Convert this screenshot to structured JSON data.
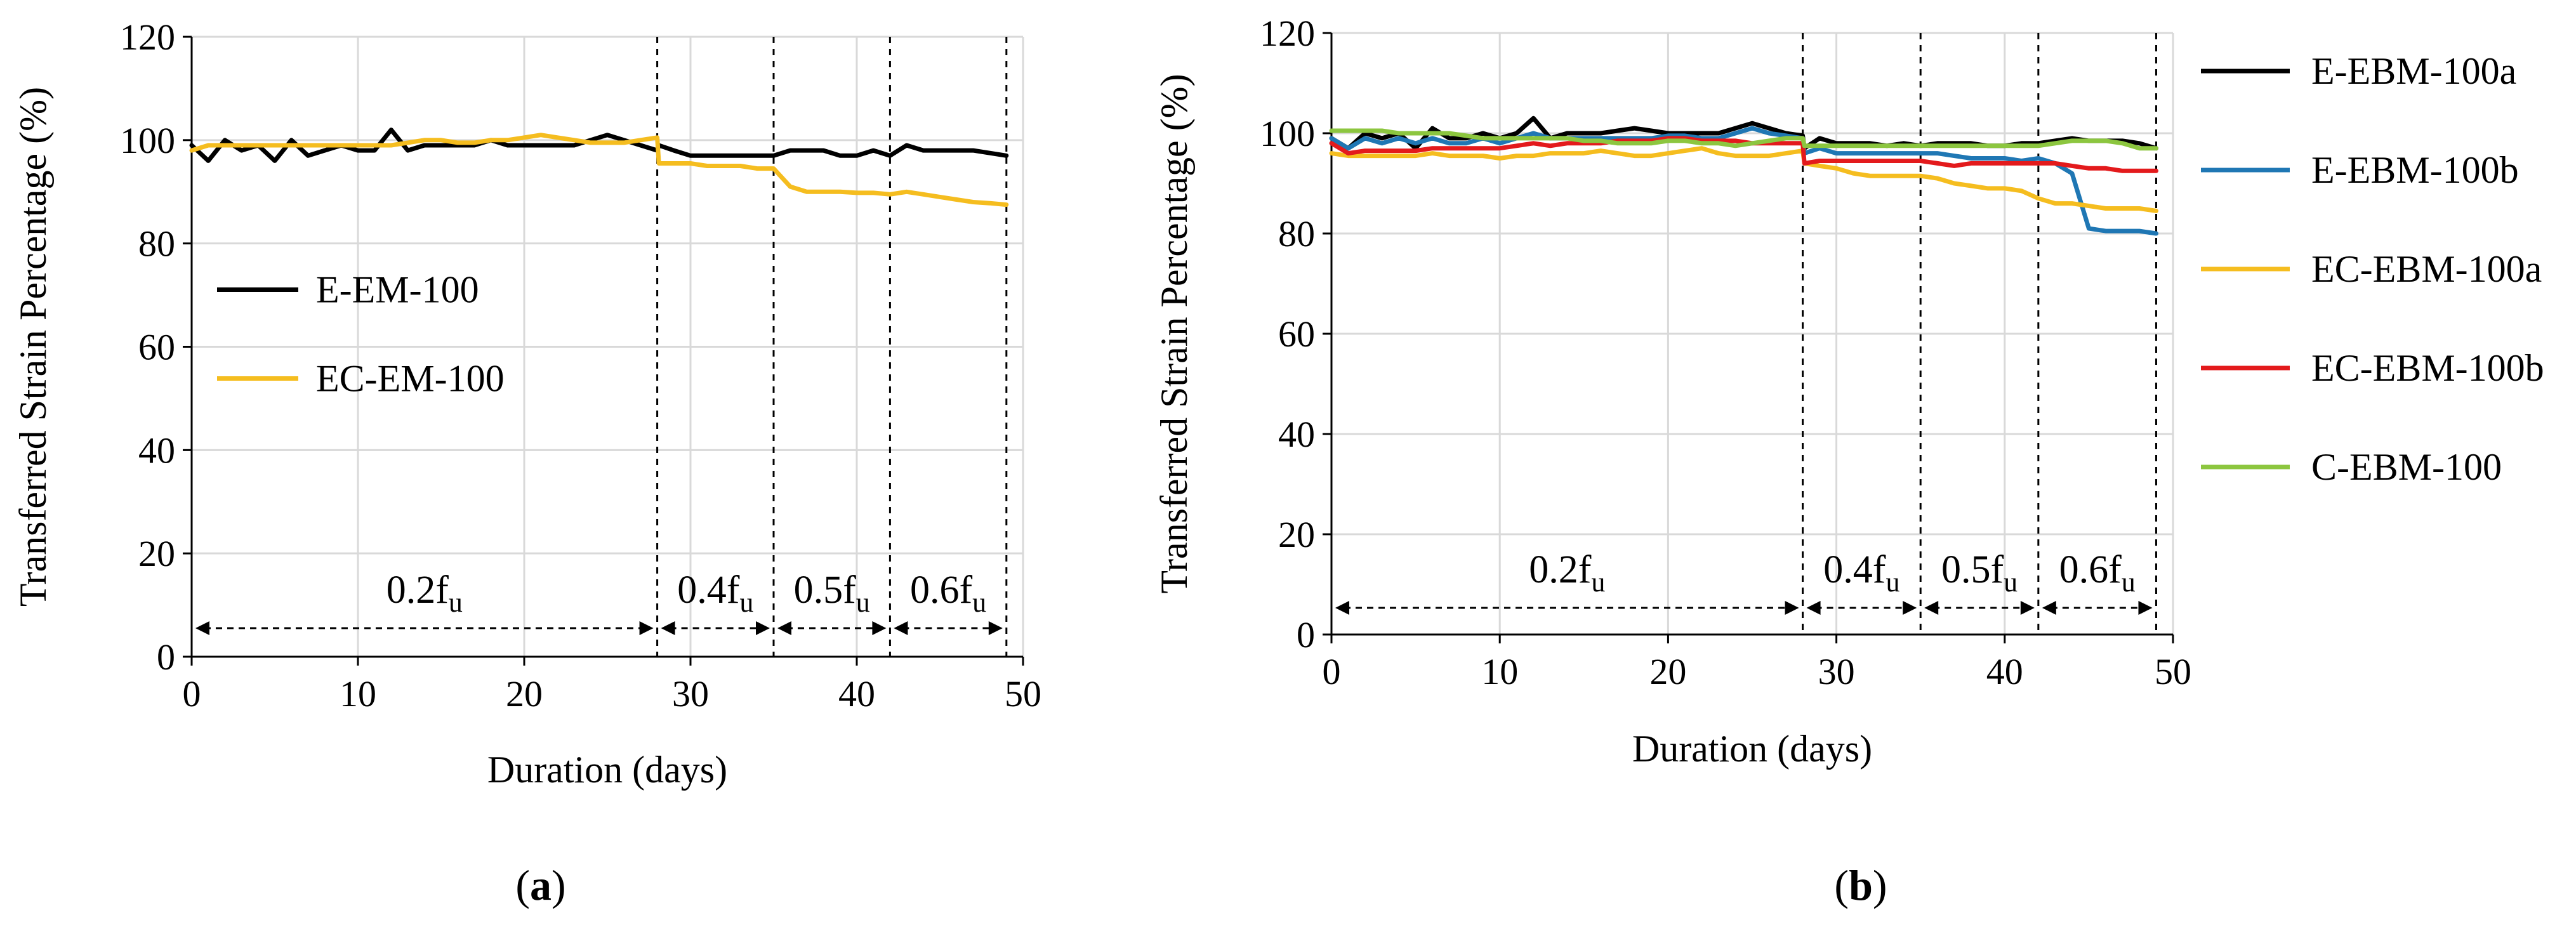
{
  "chart_data": [
    {
      "id": "a",
      "type": "line",
      "caption": "a",
      "xlabel": "Duration (days)",
      "ylabel": "Transferred Strain Percentage (%)",
      "xlim": [
        0,
        50
      ],
      "ylim": [
        0,
        120
      ],
      "xticks": [
        0,
        10,
        20,
        30,
        40,
        50
      ],
      "yticks": [
        0,
        20,
        40,
        60,
        80,
        100,
        120
      ],
      "grid": true,
      "legend_position": "center-left",
      "regions": [
        {
          "label": "0.2f",
          "sub": "u",
          "x_start": 0,
          "x_end": 28
        },
        {
          "label": "0.4f",
          "sub": "u",
          "x_start": 28,
          "x_end": 35
        },
        {
          "label": "0.5f",
          "sub": "u",
          "x_start": 35,
          "x_end": 42
        },
        {
          "label": "0.6f",
          "sub": "u",
          "x_start": 42,
          "x_end": 49
        }
      ],
      "series": [
        {
          "name": "E-EM-100",
          "color": "#000000",
          "x": [
            0,
            1,
            2,
            3,
            4,
            5,
            6,
            7,
            8,
            9,
            10,
            11,
            12,
            13,
            14,
            15,
            16,
            17,
            18,
            19,
            20,
            21,
            22,
            23,
            24,
            25,
            26,
            27,
            28,
            28.1,
            29,
            30,
            31,
            32,
            33,
            34,
            35,
            36,
            37,
            38,
            39,
            40,
            41,
            42,
            43,
            44,
            45,
            46,
            47,
            48,
            49
          ],
          "y": [
            99,
            96,
            100,
            98,
            99,
            96,
            100,
            97,
            98,
            99,
            98,
            98,
            102,
            98,
            99,
            99,
            99,
            99,
            100,
            99,
            99,
            99,
            99,
            99,
            100,
            101,
            100,
            99,
            98,
            99,
            98,
            97,
            97,
            97,
            97,
            97,
            97,
            98,
            98,
            98,
            97,
            97,
            98,
            97,
            99,
            98,
            98,
            98,
            98,
            97.5,
            97
          ]
        },
        {
          "name": "EC-EM-100",
          "color": "#F5BD1F",
          "x": [
            0,
            1,
            2,
            3,
            4,
            5,
            6,
            7,
            8,
            9,
            10,
            11,
            12,
            13,
            14,
            15,
            16,
            17,
            18,
            19,
            20,
            21,
            22,
            23,
            24,
            25,
            26,
            27,
            28,
            28.1,
            29,
            30,
            31,
            32,
            33,
            34,
            35,
            36,
            37,
            38,
            39,
            40,
            41,
            42,
            43,
            44,
            45,
            46,
            47,
            48,
            49
          ],
          "y": [
            98,
            99,
            99,
            99,
            99,
            99,
            99,
            99,
            99,
            99,
            99,
            99,
            99,
            99.5,
            100,
            100,
            99.5,
            99.5,
            100,
            100,
            100.5,
            101,
            100.5,
            100,
            99.5,
            99.5,
            99.5,
            100,
            100.5,
            95.5,
            95.5,
            95.5,
            95,
            95,
            95,
            94.5,
            94.5,
            91,
            90,
            90,
            90,
            89.8,
            89.8,
            89.5,
            90,
            89.5,
            89,
            88.5,
            88,
            87.8,
            87.5
          ]
        }
      ]
    },
    {
      "id": "b",
      "type": "line",
      "caption": "b",
      "xlabel": "Duration (days)",
      "ylabel": "Transferred Strain Percentage (%)",
      "xlim": [
        0,
        50
      ],
      "ylim": [
        0,
        120
      ],
      "xticks": [
        0,
        10,
        20,
        30,
        40,
        50
      ],
      "yticks": [
        0,
        20,
        40,
        60,
        80,
        100,
        120
      ],
      "grid": true,
      "legend_position": "right",
      "regions": [
        {
          "label": "0.2f",
          "sub": "u",
          "x_start": 0,
          "x_end": 28
        },
        {
          "label": "0.4f",
          "sub": "u",
          "x_start": 28,
          "x_end": 35
        },
        {
          "label": "0.5f",
          "sub": "u",
          "x_start": 35,
          "x_end": 42
        },
        {
          "label": "0.6f",
          "sub": "u",
          "x_start": 42,
          "x_end": 49
        }
      ],
      "series": [
        {
          "name": "E-EBM-100a",
          "color": "#000000",
          "x": [
            0,
            1,
            2,
            3,
            4,
            5,
            6,
            7,
            8,
            9,
            10,
            11,
            12,
            13,
            14,
            15,
            16,
            17,
            18,
            19,
            20,
            21,
            22,
            23,
            24,
            25,
            26,
            27,
            28,
            28.1,
            29,
            30,
            31,
            32,
            33,
            34,
            35,
            36,
            37,
            38,
            39,
            40,
            41,
            42,
            43,
            44,
            45,
            46,
            47,
            48,
            49
          ],
          "y": [
            99,
            97,
            100,
            99,
            100,
            97,
            101,
            99,
            99,
            100,
            99,
            100,
            103,
            99,
            100,
            100,
            100,
            100.5,
            101,
            100.5,
            100,
            100,
            100,
            100,
            101,
            102,
            101,
            100,
            99.5,
            97,
            99,
            98,
            98,
            98,
            97.5,
            98,
            97.5,
            98,
            98,
            98,
            97.5,
            97.5,
            98,
            98,
            98.5,
            99,
            98.5,
            98.5,
            98.5,
            98,
            97
          ]
        },
        {
          "name": "E-EBM-100b",
          "color": "#1F77B4",
          "x": [
            0,
            1,
            2,
            3,
            4,
            5,
            6,
            7,
            8,
            9,
            10,
            11,
            12,
            13,
            14,
            15,
            16,
            17,
            18,
            19,
            20,
            21,
            22,
            23,
            24,
            25,
            26,
            27,
            28,
            28.1,
            29,
            30,
            31,
            32,
            33,
            34,
            35,
            36,
            37,
            38,
            39,
            40,
            41,
            42,
            43,
            44,
            45,
            46,
            47,
            48,
            49
          ],
          "y": [
            99,
            97,
            99,
            98,
            99,
            98,
            99,
            98,
            98,
            99,
            98,
            99,
            100,
            99,
            99,
            99,
            99,
            99,
            99,
            99,
            99.5,
            99.5,
            99,
            99,
            100,
            101,
            100,
            99.5,
            99,
            96,
            97,
            96,
            96,
            96,
            96,
            96,
            96,
            96,
            95.5,
            95,
            95,
            95,
            94.5,
            95,
            94,
            92,
            81,
            80.5,
            80.5,
            80.5,
            80
          ]
        },
        {
          "name": "EC-EBM-100a",
          "color": "#F5BD1F",
          "x": [
            0,
            1,
            2,
            3,
            4,
            5,
            6,
            7,
            8,
            9,
            10,
            11,
            12,
            13,
            14,
            15,
            16,
            17,
            18,
            19,
            20,
            21,
            22,
            23,
            24,
            25,
            26,
            27,
            28,
            28.1,
            29,
            30,
            31,
            32,
            33,
            34,
            35,
            36,
            37,
            38,
            39,
            40,
            41,
            42,
            43,
            44,
            45,
            46,
            47,
            48,
            49
          ],
          "y": [
            96,
            95.5,
            95.5,
            95.5,
            95.5,
            95.5,
            96,
            95.5,
            95.5,
            95.5,
            95,
            95.5,
            95.5,
            96,
            96,
            96,
            96.5,
            96,
            95.5,
            95.5,
            96,
            96.5,
            97,
            96,
            95.5,
            95.5,
            95.5,
            96,
            96.5,
            94,
            93.5,
            93,
            92,
            91.5,
            91.5,
            91.5,
            91.5,
            91,
            90,
            89.5,
            89,
            89,
            88.5,
            87,
            86,
            86,
            85.5,
            85,
            85,
            85,
            84.5
          ]
        },
        {
          "name": "EC-EBM-100b",
          "color": "#E31A1C",
          "x": [
            0,
            1,
            2,
            3,
            4,
            5,
            6,
            7,
            8,
            9,
            10,
            11,
            12,
            13,
            14,
            15,
            16,
            17,
            18,
            19,
            20,
            21,
            22,
            23,
            24,
            25,
            26,
            27,
            28,
            28.1,
            29,
            30,
            31,
            32,
            33,
            34,
            35,
            36,
            37,
            38,
            39,
            40,
            41,
            42,
            43,
            44,
            45,
            46,
            47,
            48,
            49
          ],
          "y": [
            98,
            96,
            96.5,
            96.5,
            96.5,
            96.5,
            97,
            97,
            97,
            97,
            97,
            97.5,
            98,
            97.5,
            98,
            98,
            98,
            98.5,
            98.5,
            98.5,
            99,
            99,
            98.5,
            98.5,
            98.5,
            98,
            98,
            98,
            98,
            94,
            94.5,
            94.5,
            94.5,
            94.5,
            94.5,
            94.5,
            94.5,
            94,
            93.5,
            94,
            94,
            94,
            94,
            94,
            94,
            93.5,
            93,
            93,
            92.5,
            92.5,
            92.5
          ]
        },
        {
          "name": "C-EBM-100",
          "color": "#8CC63F",
          "x": [
            0,
            1,
            2,
            3,
            4,
            5,
            6,
            7,
            8,
            9,
            10,
            11,
            12,
            13,
            14,
            15,
            16,
            17,
            18,
            19,
            20,
            21,
            22,
            23,
            24,
            25,
            26,
            27,
            28,
            28.1,
            29,
            30,
            31,
            32,
            33,
            34,
            35,
            36,
            37,
            38,
            39,
            40,
            41,
            42,
            43,
            44,
            45,
            46,
            47,
            48,
            49
          ],
          "y": [
            100.5,
            100.5,
            100.5,
            100.5,
            100,
            100,
            100,
            100,
            99.5,
            99,
            99,
            99,
            99,
            99,
            99,
            98.5,
            98.5,
            98,
            98,
            98,
            98.5,
            98.5,
            98,
            98,
            97.5,
            98,
            98.5,
            99,
            99,
            97.5,
            97.5,
            97.5,
            97.5,
            97.5,
            97.5,
            97.5,
            97.5,
            97.5,
            97.5,
            97.5,
            97.5,
            97.5,
            97.5,
            97.5,
            98,
            98.5,
            98.5,
            98.5,
            98,
            97,
            97
          ]
        }
      ]
    }
  ]
}
